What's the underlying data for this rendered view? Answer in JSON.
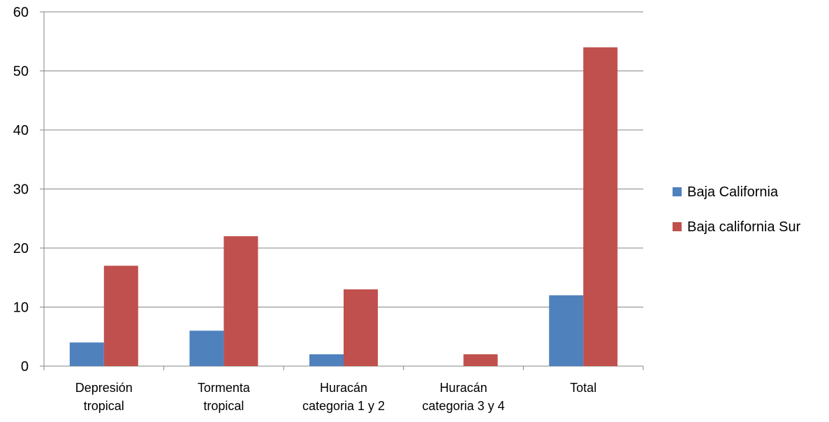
{
  "chart_data": {
    "type": "bar",
    "categories": [
      [
        "Depresión",
        "tropical"
      ],
      [
        "Tormenta",
        "tropical"
      ],
      [
        "Huracán",
        "categoria 1 y 2"
      ],
      [
        "Huracán",
        "categoria  3 y 4"
      ],
      [
        "Total"
      ]
    ],
    "series": [
      {
        "name": "Baja California",
        "color": "#4f81bd",
        "values": [
          4,
          6,
          2,
          0,
          12
        ]
      },
      {
        "name": "Baja california Sur",
        "color": "#c0504d",
        "values": [
          17,
          22,
          13,
          2,
          54
        ]
      }
    ],
    "ylim": [
      0,
      60
    ],
    "yticks": [
      0,
      10,
      20,
      30,
      40,
      50,
      60
    ],
    "grid": true,
    "legend_position": "right",
    "title": "",
    "xlabel": "",
    "ylabel": ""
  }
}
